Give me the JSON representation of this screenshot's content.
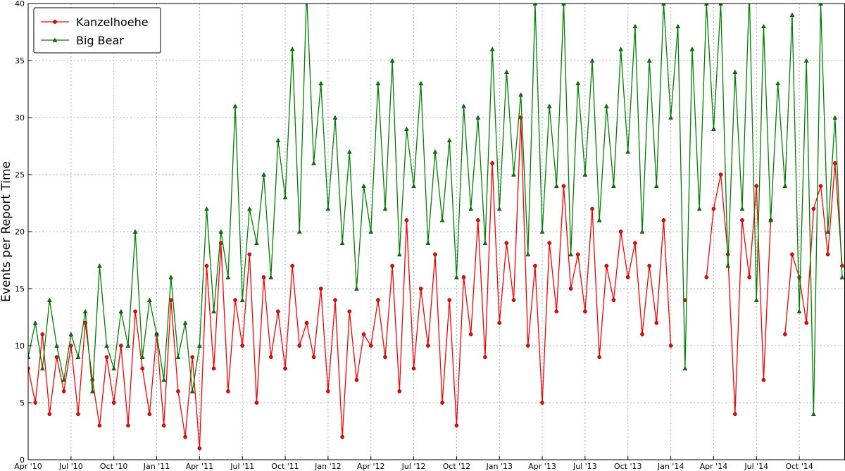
{
  "chart_data": {
    "type": "line",
    "ylabel": "Events per Report Time",
    "x": [
      0,
      0.5,
      1,
      1.5,
      2,
      2.5,
      3,
      3.5,
      4,
      4.5,
      5,
      5.5,
      6,
      6.5,
      7,
      7.5,
      8,
      8.5,
      9,
      9.5,
      10,
      10.5,
      11,
      11.5,
      12,
      12.5,
      13,
      13.5,
      14,
      14.5,
      15,
      15.5,
      16,
      16.5,
      17,
      17.5,
      18,
      18.5,
      19,
      19.5,
      20,
      20.5,
      21,
      21.5,
      22,
      22.5,
      23,
      23.5,
      24,
      24.5,
      25,
      25.5,
      26,
      26.5,
      27,
      27.5,
      28,
      28.5,
      29,
      29.5,
      30,
      30.5,
      31,
      31.5,
      32,
      32.5,
      33,
      33.5,
      34,
      34.5,
      35,
      35.5,
      36,
      36.5,
      37,
      37.5,
      38,
      38.5,
      39,
      39.5,
      40,
      40.5,
      41,
      41.5,
      42,
      42.5,
      43,
      43.5,
      44,
      44.5,
      45,
      45.5,
      46,
      46.5,
      47,
      47.5,
      48,
      48.5,
      49,
      49.5,
      50,
      50.5,
      51,
      51.5,
      52,
      52.5,
      53,
      53.5,
      54,
      54.5,
      55,
      55.5,
      56,
      56.5,
      57
    ],
    "series": [
      {
        "name": "Kanzelhoehe",
        "color": "#ff0000",
        "marker": "circle",
        "values": [
          8,
          5,
          11,
          4,
          9,
          6,
          10,
          4,
          12,
          7,
          3,
          9,
          5,
          10,
          3,
          13,
          8,
          4,
          11,
          3,
          14,
          6,
          2,
          9,
          1,
          17,
          8,
          19,
          6,
          14,
          10,
          18,
          5,
          16,
          9,
          13,
          8,
          17,
          10,
          12,
          9,
          15,
          6,
          14,
          2,
          13,
          7,
          11,
          10,
          14,
          9,
          17,
          6,
          21,
          8,
          15,
          10,
          18,
          5,
          14,
          3,
          16,
          11,
          21,
          9,
          26,
          12,
          19,
          14,
          30,
          10,
          17,
          5,
          19,
          13,
          24,
          15,
          18,
          13,
          22,
          9,
          17,
          14,
          20,
          16,
          19,
          11,
          17,
          12,
          21,
          10,
          null,
          14,
          null,
          null,
          16,
          22,
          25,
          18,
          4,
          21,
          16,
          24,
          7,
          21,
          null,
          11,
          18,
          16,
          12,
          22,
          24,
          18,
          26,
          17
        ]
      },
      {
        "name": "Big Bear",
        "color": "#008000",
        "marker": "triangle",
        "values": [
          9,
          12,
          8,
          14,
          10,
          7,
          11,
          9,
          13,
          6,
          17,
          10,
          8,
          13,
          10,
          20,
          9,
          14,
          11,
          7,
          16,
          9,
          12,
          6,
          10,
          22,
          13,
          20,
          16,
          31,
          14,
          22,
          19,
          25,
          16,
          28,
          23,
          36,
          20,
          41,
          26,
          33,
          22,
          30,
          19,
          27,
          15,
          24,
          20,
          33,
          22,
          35,
          18,
          29,
          24,
          33,
          19,
          27,
          21,
          28,
          16,
          31,
          22,
          30,
          19,
          36,
          22,
          34,
          25,
          32,
          18,
          40,
          20,
          31,
          24,
          40,
          18,
          33,
          25,
          35,
          21,
          31,
          24,
          36,
          27,
          38,
          20,
          35,
          24,
          40,
          30,
          38,
          8,
          36,
          22,
          40,
          29,
          40,
          17,
          34,
          22,
          41,
          14,
          38,
          21,
          33,
          24,
          39,
          13,
          35,
          4,
          40,
          20,
          30,
          16
        ]
      }
    ],
    "xlim": [
      0,
      57.2
    ],
    "xticks": [
      {
        "value": 0,
        "label": "Apr '10"
      },
      {
        "value": 3,
        "label": "Jul '10"
      },
      {
        "value": 6,
        "label": "Oct '10"
      },
      {
        "value": 9,
        "label": "Jan '11"
      },
      {
        "value": 12,
        "label": "Apr '11"
      },
      {
        "value": 15,
        "label": "Jul '11"
      },
      {
        "value": 18,
        "label": "Oct '11"
      },
      {
        "value": 21,
        "label": "Jan '12"
      },
      {
        "value": 24,
        "label": "Apr '12"
      },
      {
        "value": 27,
        "label": "Jul '12"
      },
      {
        "value": 30,
        "label": "Oct '12"
      },
      {
        "value": 33,
        "label": "Jan '13"
      },
      {
        "value": 36,
        "label": "Apr '13"
      },
      {
        "value": 39,
        "label": "Jul '13"
      },
      {
        "value": 42,
        "label": "Oct '13"
      },
      {
        "value": 45,
        "label": "Jan '14"
      },
      {
        "value": 48,
        "label": "Apr '14"
      },
      {
        "value": 51,
        "label": "Jul '14"
      },
      {
        "value": 54,
        "label": "Oct '14"
      }
    ],
    "ylim": [
      0,
      40
    ],
    "yticks": [
      0,
      5,
      10,
      15,
      20,
      25,
      30,
      35,
      40
    ],
    "grid": true,
    "legend": "upper-left"
  }
}
